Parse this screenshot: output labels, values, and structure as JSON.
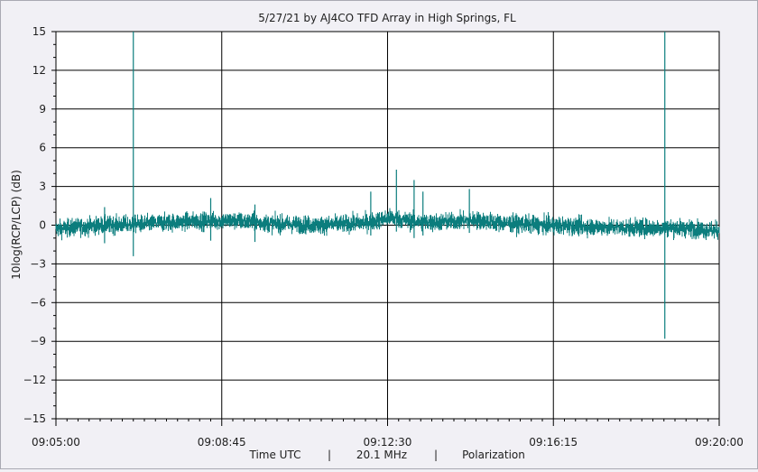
{
  "chart_data": {
    "type": "line",
    "title": "5/27/21  by  AJ4CO TFD Array  in  High Springs, FL",
    "ylabel": "10log(RCP/LCP) (dB)",
    "xlabel_parts": [
      "Time UTC",
      "|",
      "20.1 MHz",
      "|",
      "Polarization"
    ],
    "ylim": [
      -15,
      15
    ],
    "yticks": [
      15,
      12,
      9,
      6,
      3,
      0,
      -3,
      -6,
      -9,
      -12,
      -15
    ],
    "ytick_labels": [
      "15",
      "12",
      "9",
      "6",
      "3",
      "0",
      "−3",
      "−6",
      "−9",
      "−12",
      "−15"
    ],
    "xlim_minutes": [
      0,
      15
    ],
    "xticks_minutes": [
      0,
      3.75,
      7.5,
      11.25,
      15
    ],
    "xtick_labels": [
      "09:05:00",
      "09:08:45",
      "09:12:30",
      "09:16:15",
      "09:20:00"
    ],
    "grid": true,
    "series_color": "#0b7d7d",
    "series": [
      {
        "noise_std_db": 0.35,
        "baseline_db": [
          [
            0.0,
            -0.3
          ],
          [
            1.0,
            0.0
          ],
          [
            2.0,
            0.1
          ],
          [
            3.0,
            0.3
          ],
          [
            4.0,
            0.35
          ],
          [
            5.0,
            0.1
          ],
          [
            6.0,
            0.0
          ],
          [
            7.0,
            0.2
          ],
          [
            7.6,
            0.6
          ],
          [
            8.0,
            0.3
          ],
          [
            8.5,
            0.2
          ],
          [
            9.0,
            0.3
          ],
          [
            9.5,
            0.4
          ],
          [
            10.0,
            0.2
          ],
          [
            11.0,
            0.0
          ],
          [
            12.0,
            -0.1
          ],
          [
            13.0,
            -0.2
          ],
          [
            14.0,
            -0.2
          ],
          [
            15.0,
            -0.4
          ]
        ],
        "spikes": [
          {
            "t": 1.75,
            "max": 15,
            "min": -2.4
          },
          {
            "t": 13.77,
            "max": 15,
            "min": -8.8
          },
          {
            "t": 7.7,
            "max": 4.3,
            "min": -0.5
          },
          {
            "t": 8.1,
            "max": 3.5,
            "min": -1.0
          },
          {
            "t": 8.3,
            "max": 2.6,
            "min": -0.8
          },
          {
            "t": 9.35,
            "max": 2.8,
            "min": -0.6
          },
          {
            "t": 7.12,
            "max": 2.6,
            "min": -0.8
          },
          {
            "t": 3.5,
            "max": 2.1,
            "min": -1.2
          },
          {
            "t": 4.5,
            "max": 1.6,
            "min": -1.3
          },
          {
            "t": 1.1,
            "max": 1.4,
            "min": -1.4
          }
        ]
      }
    ]
  }
}
